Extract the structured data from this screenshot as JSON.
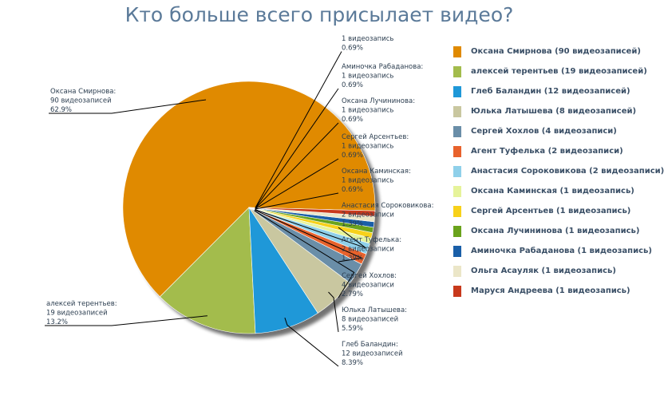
{
  "title": "Кто больше всего присылает видео?",
  "chart_data": {
    "type": "pie",
    "title": "Кто больше всего присылает видео?",
    "legend_position": "right",
    "slices": [
      {
        "name": "Оксана Смирнова",
        "value": 90,
        "count_label": "90 видеозаписей",
        "percent": "62.9%",
        "color": "#e08a00",
        "legend": "Оксана Смирнова (90 видеозаписей)"
      },
      {
        "name": "алексей терентьев",
        "value": 19,
        "count_label": "19 видеозаписей",
        "percent": "13.2%",
        "color": "#a3bc4c",
        "legend": "алексей терентьев (19 видеозаписей)"
      },
      {
        "name": "Глеб Баландин",
        "value": 12,
        "count_label": "12 видеозаписей",
        "percent": "8.39%",
        "color": "#1f98d8",
        "legend": "Глеб Баландин (12 видеозаписей)"
      },
      {
        "name": "Юлька Латышева",
        "value": 8,
        "count_label": "8 видеозаписей",
        "percent": "5.59%",
        "color": "#c9c7a0",
        "legend": "Юлька Латышева (8 видеозаписей)"
      },
      {
        "name": "Сергей Хохлов",
        "value": 4,
        "count_label": "4 видеозаписи",
        "percent": "2.79%",
        "color": "#6a8ea8",
        "legend": "Сергей Хохлов (4 видеозаписи)"
      },
      {
        "name": "Агент Туфелька",
        "value": 2,
        "count_label": "2 видеозаписи",
        "percent": "1.39%",
        "color": "#e8622c",
        "legend": "Агент Туфелька (2 видеозаписи)"
      },
      {
        "name": "Анастасия Сороковикова",
        "value": 2,
        "count_label": "2 видеозаписи",
        "percent": "1.39%",
        "color": "#8fd0ea",
        "legend": "Анастасия Сороковикова (2 видеозаписи)"
      },
      {
        "name": "Оксана Каминская",
        "value": 1,
        "count_label": "1 видеозапись",
        "percent": "0.69%",
        "color": "#e6f39a",
        "legend": "Оксана Каминская (1 видеозапись)"
      },
      {
        "name": "Сергей Арсентьев",
        "value": 1,
        "count_label": "1 видеозапись",
        "percent": "0.69%",
        "color": "#f7d11a",
        "legend": "Сергей Арсентьев (1 видеозапись)"
      },
      {
        "name": "Оксана Лучининова",
        "value": 1,
        "count_label": "1 видеозапись",
        "percent": "0.69%",
        "color": "#6aa31c",
        "legend": "Оксана Лучининова (1 видеозапись)"
      },
      {
        "name": "Аминочка Рабаданова",
        "value": 1,
        "count_label": "1 видеозапись",
        "percent": "0.69%",
        "color": "#1a5fa8",
        "legend": "Аминочка Рабаданова (1 видеозапись)"
      },
      {
        "name": "Ольга Асауляк",
        "value": 1,
        "count_label": "1 видеозапись",
        "percent": "0.69%",
        "color": "#ebe6c8",
        "legend": "Ольга Асауляк (1 видеозапись)"
      },
      {
        "name": "Маруся Андреева",
        "value": 1,
        "count_label": "1 видеозапись",
        "percent": "0.69%",
        "color": "#c8391c",
        "legend": "Маруся Андреева (1 видеозапись)"
      }
    ],
    "data_labels": [
      {
        "slice": 12,
        "lines": [
          "1 видеозапись",
          "0.69%"
        ]
      },
      {
        "slice": 10,
        "lines": [
          "Аминочка Рабаданова:",
          "1 видеозапись",
          "0.69%"
        ]
      },
      {
        "slice": 9,
        "lines": [
          "Оксана Лучининова:",
          "1 видеозапись",
          "0.69%"
        ]
      },
      {
        "slice": 8,
        "lines": [
          "Сергей Арсентьев:",
          "1 видеозапись",
          "0.69%"
        ]
      },
      {
        "slice": 7,
        "lines": [
          "Оксана Каминская:",
          "1 видеозапись",
          "0.69%"
        ]
      },
      {
        "slice": 6,
        "lines": [
          "Анастасия Сороковикова:",
          "2 видеозаписи",
          "1.39%"
        ]
      },
      {
        "slice": 5,
        "lines": [
          "Агент Туфелька:",
          "2 видеозаписи",
          "1.39%"
        ]
      },
      {
        "slice": 4,
        "lines": [
          "Сергей Хохлов:",
          "4 видеозаписи",
          "2.79%"
        ]
      },
      {
        "slice": 3,
        "lines": [
          "Юлька Латышева:",
          "8 видеозаписей",
          "5.59%"
        ]
      },
      {
        "slice": 2,
        "lines": [
          "Глеб Баландин:",
          "12 видеозаписей",
          "8.39%"
        ]
      },
      {
        "slice": 0,
        "lines": [
          "Оксана Смирнова:",
          "90 видеозаписей",
          "62.9%"
        ]
      },
      {
        "slice": 1,
        "lines": [
          "алексей терентьев:",
          "19 видеозаписей",
          "13.2%"
        ]
      }
    ]
  }
}
